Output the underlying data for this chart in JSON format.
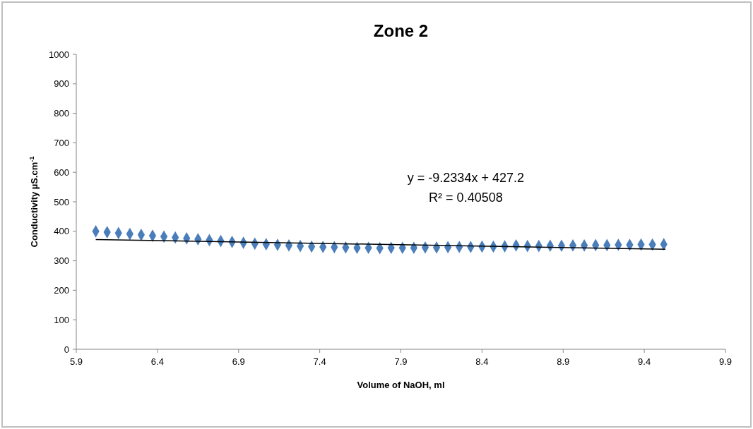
{
  "chart_data": {
    "type": "scatter",
    "title": "Zone 2",
    "xlabel": "Volume of NaOH, ml",
    "ylabel": "Conductivity µS.cm$^{-1}$",
    "annotations": [
      "y = -9.2334x + 427.2",
      "R² = 0.40508"
    ],
    "xlim": [
      5.9,
      9.9
    ],
    "xticks": [
      5.9,
      6.4,
      6.9,
      7.4,
      7.9,
      8.4,
      8.9,
      9.4,
      9.9
    ],
    "ylim": [
      0,
      1000
    ],
    "yticks": [
      0,
      100,
      200,
      300,
      400,
      500,
      600,
      700,
      800,
      900,
      1000
    ],
    "grid": false,
    "marker": "diamond",
    "series": [
      {
        "type": "scatter",
        "color": "#4a7ebb",
        "x": [
          6.02,
          6.09,
          6.16,
          6.23,
          6.3,
          6.37,
          6.44,
          6.51,
          6.58,
          6.65,
          6.72,
          6.79,
          6.86,
          6.93,
          7.0,
          7.07,
          7.14,
          7.21,
          7.28,
          7.35,
          7.42,
          7.49,
          7.56,
          7.63,
          7.7,
          7.77,
          7.84,
          7.91,
          7.98,
          8.05,
          8.12,
          8.19,
          8.26,
          8.33,
          8.4,
          8.47,
          8.54,
          8.61,
          8.68,
          8.75,
          8.82,
          8.89,
          8.96,
          9.03,
          9.1,
          9.17,
          9.24,
          9.31,
          9.38,
          9.45,
          9.52
        ],
        "values": [
          400,
          397,
          394,
          391,
          388,
          385,
          382,
          379,
          376,
          373,
          370,
          367,
          364,
          361,
          358,
          356,
          354,
          352,
          350,
          348,
          347,
          346,
          345,
          344,
          344,
          343,
          344,
          344,
          344,
          345,
          345,
          346,
          347,
          347,
          348,
          348,
          349,
          352,
          350,
          350,
          351,
          351,
          352,
          352,
          353,
          353,
          354,
          354,
          355,
          355,
          356
        ]
      },
      {
        "type": "line",
        "color": "#000000",
        "marker": "none",
        "line_style": "solid",
        "x": [
          6.02,
          9.53
        ],
        "values": [
          372,
          339
        ]
      }
    ]
  }
}
